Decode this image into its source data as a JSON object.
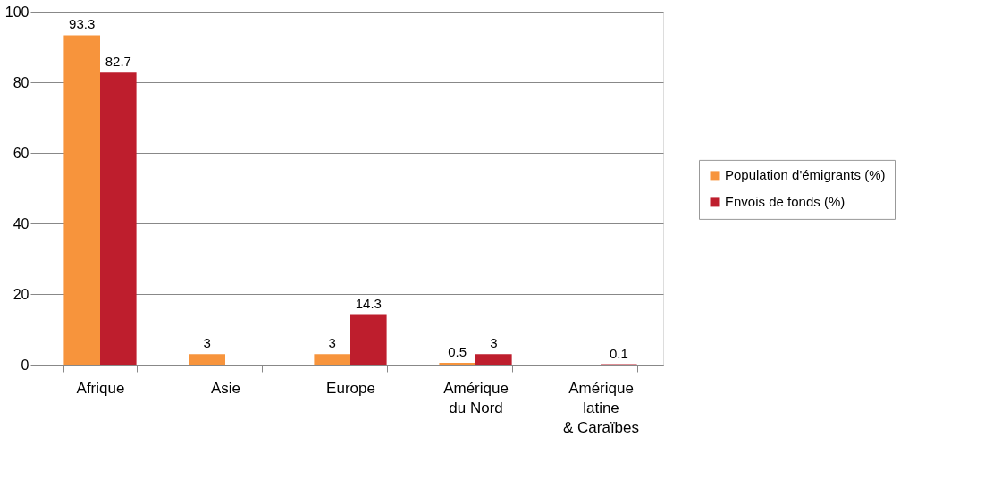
{
  "chart_data": {
    "type": "bar",
    "categories": [
      "Afrique",
      "Asie",
      "Europe",
      "Amérique\ndu Nord",
      "Amérique\nlatine\n& Caraïbes"
    ],
    "series": [
      {
        "name": "Population d'émigrants (%)",
        "color": "#f7943c",
        "values": [
          93.3,
          3,
          3,
          0.5,
          null
        ]
      },
      {
        "name": "Envois de fonds (%)",
        "color": "#be1e2d",
        "values": [
          82.7,
          null,
          14.3,
          3,
          0.1
        ]
      }
    ],
    "ylim": [
      0,
      100
    ],
    "yticks": [
      0,
      20,
      40,
      60,
      80,
      100
    ],
    "grid": "y",
    "legend": "right",
    "data_labels": true
  }
}
